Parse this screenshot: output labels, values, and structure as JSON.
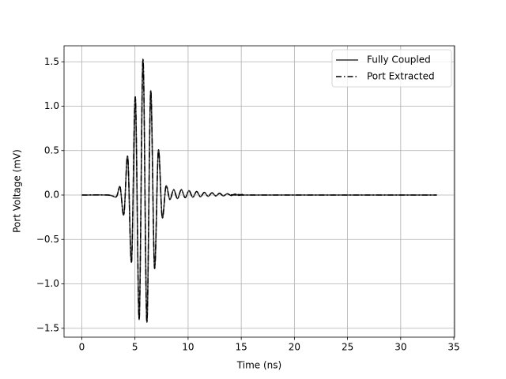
{
  "chart_data": {
    "type": "line",
    "xlabel": "Time (ns)",
    "ylabel": "Port Voltage (mV)",
    "x": [
      0,
      2.5,
      3.24,
      3.6,
      3.96,
      4.32,
      4.68,
      5.04,
      5.4,
      5.76,
      6.12,
      6.48,
      6.84,
      7.2,
      7.56,
      7.92,
      8.28,
      8.64,
      9.0,
      9.36,
      9.72,
      10.08,
      10.44,
      10.8,
      11.16,
      11.52,
      11.88,
      12.24,
      12.6,
      12.96,
      13.32,
      13.68,
      14.04,
      14.4,
      14.76,
      15.12,
      15.5,
      33.4
    ],
    "series": [
      {
        "name": "Fully Coupled",
        "color": "#333333",
        "linestyle": "solid",
        "values": [
          0,
          0,
          -0.02,
          0.09,
          -0.22,
          0.43,
          -0.75,
          1.1,
          -1.4,
          1.53,
          -1.43,
          1.17,
          -0.82,
          0.5,
          -0.25,
          0.1,
          -0.05,
          0.06,
          -0.04,
          0.06,
          -0.03,
          0.05,
          -0.025,
          0.04,
          -0.02,
          0.03,
          -0.015,
          0.025,
          -0.01,
          0.02,
          -0.01,
          0.015,
          -0.005,
          0.01,
          -0.003,
          0.005,
          0,
          0
        ]
      },
      {
        "name": "Port Extracted",
        "color": "#000000",
        "linestyle": "dashdot",
        "values": [
          0,
          0,
          -0.02,
          0.09,
          -0.22,
          0.43,
          -0.75,
          1.1,
          -1.4,
          1.53,
          -1.43,
          1.17,
          -0.82,
          0.5,
          -0.25,
          0.1,
          -0.05,
          0.06,
          -0.04,
          0.06,
          -0.03,
          0.05,
          -0.025,
          0.04,
          -0.02,
          0.03,
          -0.015,
          0.025,
          -0.01,
          0.02,
          -0.01,
          0.015,
          -0.005,
          0.01,
          -0.003,
          0.005,
          0,
          0
        ]
      }
    ],
    "xlim": [
      -1.67,
      35.07
    ],
    "xticks": [
      0,
      5,
      10,
      15,
      20,
      25,
      30,
      35
    ],
    "ylim": [
      -1.6,
      1.68
    ],
    "yticks": [
      {
        "value": -1.5,
        "label": "−1.5"
      },
      {
        "value": -1,
        "label": "−1.0"
      },
      {
        "value": -0.5,
        "label": "−0.5"
      },
      {
        "value": 0,
        "label": "0.0"
      },
      0.5,
      {
        "value": 1,
        "label": "1.0"
      },
      1.5
    ],
    "grid": true,
    "legend": "upper-right"
  }
}
